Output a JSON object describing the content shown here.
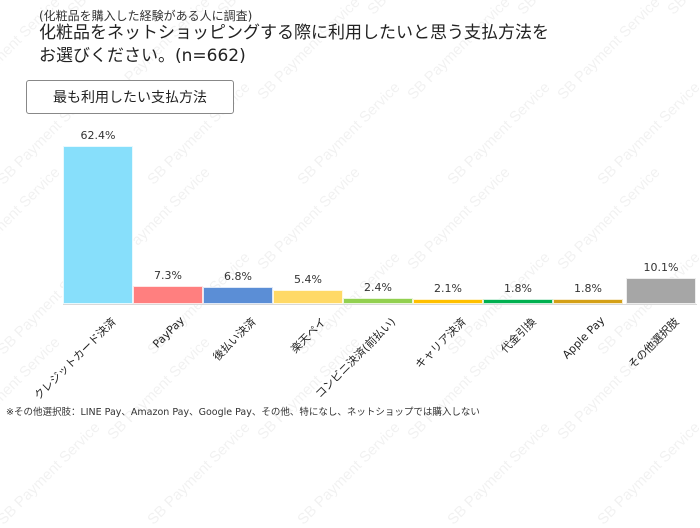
{
  "header": {
    "subtitle": "(化粧品を購入した経験がある人に調査)",
    "title_line1": "化粧品をネットショッピングする際に利用したいと思う支払方法を",
    "title_line2": "お選びください。(n=662)"
  },
  "legend": {
    "label": "最も利用したい支払方法"
  },
  "watermark": "SB Payment Service",
  "footnote": "※その他選択肢：LINE Pay、Amazon Pay、Google Pay、その他、特になし、ネットショップでは購入しない",
  "chart_data": {
    "type": "bar",
    "title": "化粧品をネットショッピングする際に利用したいと思う支払方法をお選びください。(n=662)",
    "subtitle": "(化粧品を購入した経験がある人に調査)",
    "legend": [
      "最も利用したい支払方法"
    ],
    "categories": [
      "クレジットカード決済",
      "PayPay",
      "後払い決済",
      "楽天ペイ",
      "コンビニ決済(前払い)",
      "キャリア決済",
      "代金引換",
      "Apple Pay",
      "その他選択肢"
    ],
    "values": [
      62.4,
      7.3,
      6.8,
      5.4,
      2.4,
      2.1,
      1.8,
      1.8,
      10.1
    ],
    "value_labels": [
      "62.4%",
      "7.3%",
      "6.8%",
      "5.4%",
      "2.4%",
      "2.1%",
      "1.8%",
      "1.8%",
      "10.1%"
    ],
    "colors": [
      "#87DFFB",
      "#FF7F7F",
      "#5B8ED6",
      "#FFD966",
      "#92D050",
      "#FFC000",
      "#00B050",
      "#D4A017",
      "#A6A6A6"
    ],
    "xlabel": "",
    "ylabel": "",
    "ylim": [
      0,
      70
    ],
    "grid": false,
    "note": "※その他選択肢：LINE Pay、Amazon Pay、Google Pay、その他、特になし、ネットショップでは購入しない"
  }
}
